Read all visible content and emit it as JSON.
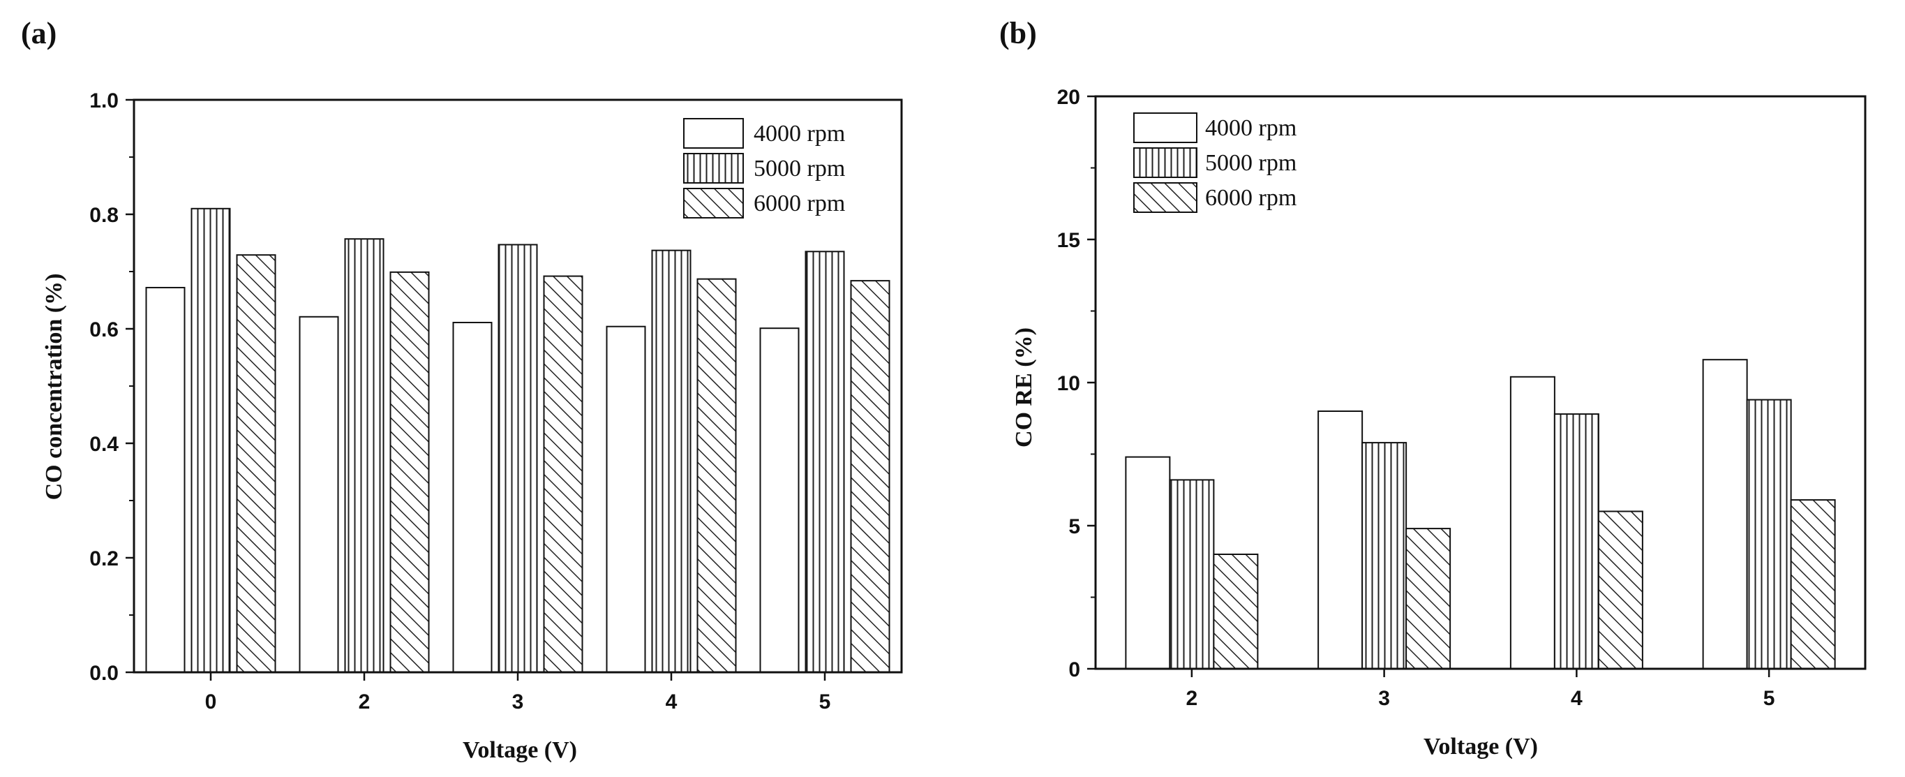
{
  "chart_data": [
    {
      "panel_label": "(a)",
      "type": "bar",
      "categories": [
        "0",
        "2",
        "3",
        "4",
        "5"
      ],
      "series": [
        {
          "name": "4000 rpm",
          "pattern": "plain",
          "values": [
            0.672,
            0.621,
            0.611,
            0.604,
            0.601
          ]
        },
        {
          "name": "5000 rpm",
          "pattern": "vertical-lines",
          "values": [
            0.81,
            0.757,
            0.747,
            0.737,
            0.735
          ]
        },
        {
          "name": "6000 rpm",
          "pattern": "diagonal-hatch",
          "values": [
            0.729,
            0.699,
            0.692,
            0.687,
            0.684
          ]
        }
      ],
      "xlabel": "Voltage (V)",
      "ylabel": "CO concentration (%)",
      "ylim": [
        0,
        1.0
      ],
      "yticks": [
        "0.0",
        "0.2",
        "0.4",
        "0.6",
        "0.8",
        "1.0"
      ],
      "legend": "top-right",
      "grid": false
    },
    {
      "panel_label": "(b)",
      "type": "bar",
      "categories": [
        "2",
        "3",
        "4",
        "5"
      ],
      "series": [
        {
          "name": "4000 rpm",
          "pattern": "plain",
          "values": [
            7.4,
            9.0,
            10.2,
            10.8
          ]
        },
        {
          "name": "5000 rpm",
          "pattern": "vertical-lines",
          "values": [
            6.6,
            7.9,
            8.9,
            9.4
          ]
        },
        {
          "name": "6000 rpm",
          "pattern": "diagonal-hatch",
          "values": [
            4.0,
            4.9,
            5.5,
            5.9
          ]
        }
      ],
      "xlabel": "Voltage (V)",
      "ylabel": "CO RE (%)",
      "ylim": [
        0,
        20
      ],
      "yticks": [
        "0",
        "5",
        "10",
        "15",
        "20"
      ],
      "legend": "top-left",
      "grid": false
    }
  ]
}
